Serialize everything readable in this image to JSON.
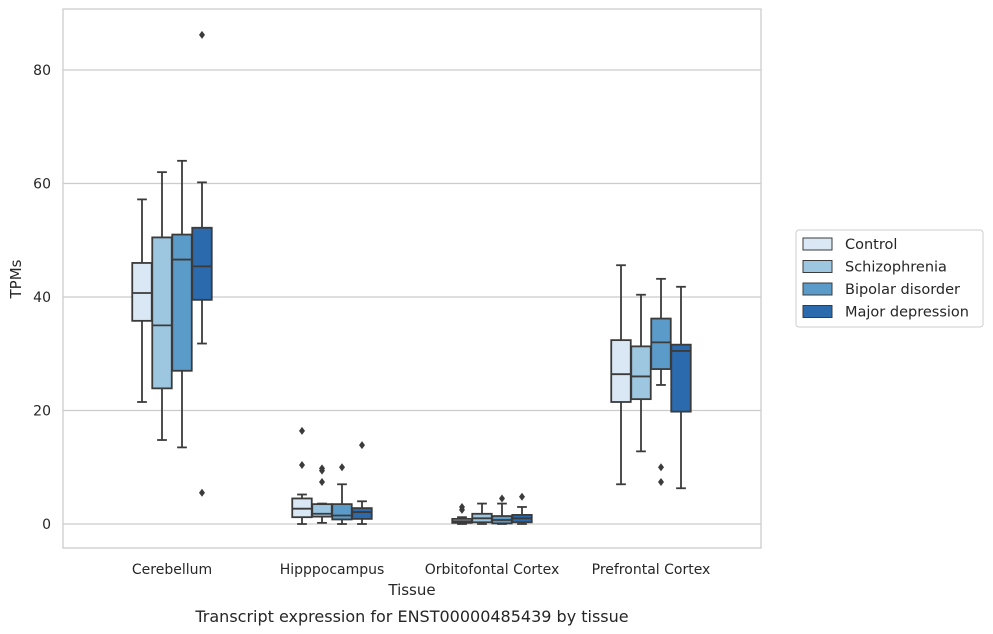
{
  "chart_data": {
    "type": "box",
    "caption": "Transcript expression for ENST00000485439 by tissue",
    "xlabel": "Tissue",
    "ylabel": "TPMs",
    "ylim": [
      -4,
      91
    ],
    "yticks": [
      0,
      20,
      40,
      60,
      80
    ],
    "grid": true,
    "legend_position": "right",
    "categories": [
      "Cerebellum",
      "Hipppocampus",
      "Orbitofontal Cortex",
      "Prefrontal Cortex"
    ],
    "series": [
      {
        "name": "Control",
        "color": "#dae8f5",
        "boxes": [
          {
            "whislo": 21.5,
            "q1": 35.8,
            "med": 40.7,
            "q3": 46.0,
            "whishi": 57.2,
            "fliers": []
          },
          {
            "whislo": 0.0,
            "q1": 1.2,
            "med": 2.7,
            "q3": 4.5,
            "whishi": 5.2,
            "fliers": [
              10.4,
              16.4
            ]
          },
          {
            "whislo": 0.0,
            "q1": 0.2,
            "med": 0.5,
            "q3": 0.9,
            "whishi": 1.2,
            "fliers": [
              2.5,
              3.0
            ]
          },
          {
            "whislo": 7.0,
            "q1": 21.5,
            "med": 26.4,
            "q3": 32.4,
            "whishi": 45.6,
            "fliers": []
          }
        ]
      },
      {
        "name": "Schizophrenia",
        "color": "#9dc6e0",
        "boxes": [
          {
            "whislo": 14.8,
            "q1": 23.9,
            "med": 35.0,
            "q3": 50.5,
            "whishi": 62.0,
            "fliers": []
          },
          {
            "whislo": 0.2,
            "q1": 1.3,
            "med": 1.8,
            "q3": 3.5,
            "whishi": 3.6,
            "fliers": [
              7.4,
              9.4,
              9.8
            ]
          },
          {
            "whislo": 0.0,
            "q1": 0.3,
            "med": 1.0,
            "q3": 1.8,
            "whishi": 3.6,
            "fliers": []
          },
          {
            "whislo": 12.8,
            "q1": 22.0,
            "med": 26.0,
            "q3": 31.3,
            "whishi": 40.4,
            "fliers": []
          }
        ]
      },
      {
        "name": "Bipolar disorder",
        "color": "#5b9bc9",
        "boxes": [
          {
            "whislo": 13.5,
            "q1": 27.0,
            "med": 46.6,
            "q3": 51.0,
            "whishi": 64.0,
            "fliers": []
          },
          {
            "whislo": 0.0,
            "q1": 0.8,
            "med": 1.5,
            "q3": 3.5,
            "whishi": 7.0,
            "fliers": [
              10.0
            ]
          },
          {
            "whislo": 0.0,
            "q1": 0.1,
            "med": 0.7,
            "q3": 1.4,
            "whishi": 3.6,
            "fliers": [
              4.5
            ]
          },
          {
            "whislo": 24.5,
            "q1": 27.3,
            "med": 32.0,
            "q3": 36.2,
            "whishi": 43.2,
            "fliers": [
              7.4,
              10.0
            ]
          }
        ]
      },
      {
        "name": "Major depression",
        "color": "#2a6aad",
        "boxes": [
          {
            "whislo": 31.8,
            "q1": 39.5,
            "med": 45.4,
            "q3": 52.2,
            "whishi": 60.2,
            "fliers": [
              5.5,
              86.2
            ]
          },
          {
            "whislo": 0.0,
            "q1": 0.9,
            "med": 2.1,
            "q3": 2.8,
            "whishi": 4.0,
            "fliers": [
              13.9
            ]
          },
          {
            "whislo": 0.0,
            "q1": 0.3,
            "med": 1.0,
            "q3": 1.6,
            "whishi": 3.0,
            "fliers": [
              4.8
            ]
          },
          {
            "whislo": 6.3,
            "q1": 19.8,
            "med": 30.5,
            "q3": 31.6,
            "whishi": 41.8,
            "fliers": []
          }
        ]
      }
    ]
  }
}
